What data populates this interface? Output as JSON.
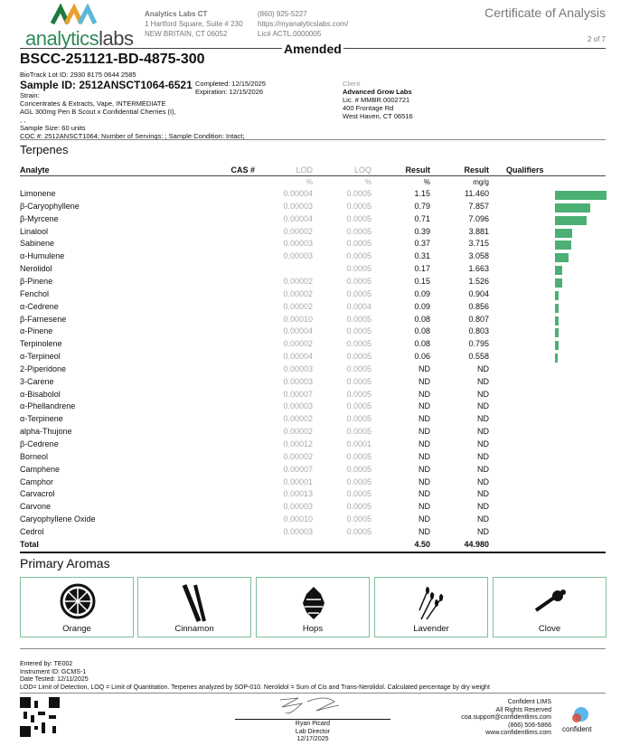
{
  "header": {
    "logo_text_1": "analytics",
    "logo_text_2": "labs",
    "lab_name": "Analytics Labs CT",
    "lab_address_1": "1 Hartford Square, Suite # 230",
    "lab_address_2": "NEW BRITAIN, CT 06052",
    "phone": "(860) 925-5227",
    "website": "https://myanalyticslabs.com/",
    "license": "Lic# ACTL.0000005",
    "doc_title": "Certificate of Analysis",
    "page": "2 of 7",
    "amended": "Amended"
  },
  "sample": {
    "batch": "BSCC-251121-BD-4875-300",
    "biotrack": "BioTrack Lot ID: 2930 8175 0644 2585",
    "sample_id": "Sample ID: 2512ANSCT1064-6521",
    "strain": "Strain:",
    "category": "Concentrates & Extracts, Vape, INTERMEDIATE",
    "product": "AGL 300mg Pen B Scout x Confidential Cherries (I),",
    "dots": ", ,",
    "size": "Sample Size: 60 units",
    "coc": "COC #: 2512ANSCT1064; Number of Servings: ; Sample Condition: Intact;",
    "completed": "Completed: 12/15/2025",
    "expiration": "Expiration: 12/15/2026"
  },
  "client": {
    "label": "Client",
    "name": "Advanced Grow Labs",
    "license": "Lic. # MMBR.0002721",
    "address_1": "400 Frontage Rd",
    "address_2": "West Haven, CT 06516"
  },
  "terpenes": {
    "title": "Terpenes",
    "headers": {
      "analyte": "Analyte",
      "cas": "CAS #",
      "lod": "LOD",
      "loq": "LOQ",
      "result_pct": "Result",
      "result_mg": "Result",
      "qualifiers": "Qualifiers"
    },
    "units": {
      "lod": "%",
      "loq": "%",
      "pct": "%",
      "mg": "mg/g"
    },
    "rows": [
      {
        "name": "Limonene",
        "lod": "0.00004",
        "loq": "0.0005",
        "pct": "1.15",
        "mg": "11.460",
        "bar": 11.46
      },
      {
        "name": "β-Caryophyllene",
        "lod": "0.00003",
        "loq": "0.0005",
        "pct": "0.79",
        "mg": "7.857",
        "bar": 7.857
      },
      {
        "name": "β-Myrcene",
        "lod": "0.00004",
        "loq": "0.0005",
        "pct": "0.71",
        "mg": "7.096",
        "bar": 7.096
      },
      {
        "name": "Linalool",
        "lod": "0.00002",
        "loq": "0.0005",
        "pct": "0.39",
        "mg": "3.881",
        "bar": 3.881
      },
      {
        "name": "Sabinene",
        "lod": "0.00003",
        "loq": "0.0005",
        "pct": "0.37",
        "mg": "3.715",
        "bar": 3.715
      },
      {
        "name": "α-Humulene",
        "lod": "0.00003",
        "loq": "0.0005",
        "pct": "0.31",
        "mg": "3.058",
        "bar": 3.058
      },
      {
        "name": "Nerolidol",
        "lod": "",
        "loq": "0.0005",
        "pct": "0.17",
        "mg": "1.663",
        "bar": 1.663
      },
      {
        "name": "β-Pinene",
        "lod": "0.00002",
        "loq": "0.0005",
        "pct": "0.15",
        "mg": "1.526",
        "bar": 1.526
      },
      {
        "name": "Fenchol",
        "lod": "0.00002",
        "loq": "0.0005",
        "pct": "0.09",
        "mg": "0.904",
        "bar": 0.904
      },
      {
        "name": "α-Cedrene",
        "lod": "0.00002",
        "loq": "0.0004",
        "pct": "0.09",
        "mg": "0.856",
        "bar": 0.856
      },
      {
        "name": "β-Farnesene",
        "lod": "0.00010",
        "loq": "0.0005",
        "pct": "0.08",
        "mg": "0.807",
        "bar": 0.807
      },
      {
        "name": "α-Pinene",
        "lod": "0.00004",
        "loq": "0.0005",
        "pct": "0.08",
        "mg": "0.803",
        "bar": 0.803
      },
      {
        "name": "Terpinolene",
        "lod": "0.00002",
        "loq": "0.0005",
        "pct": "0.08",
        "mg": "0.795",
        "bar": 0.795
      },
      {
        "name": "α-Terpineol",
        "lod": "0.00004",
        "loq": "0.0005",
        "pct": "0.06",
        "mg": "0.558",
        "bar": 0.558
      },
      {
        "name": "2-Piperidone",
        "lod": "0.00003",
        "loq": "0.0005",
        "pct": "ND",
        "mg": "ND"
      },
      {
        "name": "3-Carene",
        "lod": "0.00003",
        "loq": "0.0005",
        "pct": "ND",
        "mg": "ND"
      },
      {
        "name": "α-Bisabolol",
        "lod": "0.00007",
        "loq": "0.0005",
        "pct": "ND",
        "mg": "ND"
      },
      {
        "name": "α-Phellandrene",
        "lod": "0.00003",
        "loq": "0.0005",
        "pct": "ND",
        "mg": "ND"
      },
      {
        "name": "α-Terpinene",
        "lod": "0.00002",
        "loq": "0.0005",
        "pct": "ND",
        "mg": "ND"
      },
      {
        "name": "alpha-Thujone",
        "lod": "0.00002",
        "loq": "0.0005",
        "pct": "ND",
        "mg": "ND"
      },
      {
        "name": "β-Cedrene",
        "lod": "0.00012",
        "loq": "0.0001",
        "pct": "ND",
        "mg": "ND"
      },
      {
        "name": "Borneol",
        "lod": "0.00002",
        "loq": "0.0005",
        "pct": "ND",
        "mg": "ND"
      },
      {
        "name": "Camphene",
        "lod": "0.00007",
        "loq": "0.0005",
        "pct": "ND",
        "mg": "ND"
      },
      {
        "name": "Camphor",
        "lod": "0.00001",
        "loq": "0.0005",
        "pct": "ND",
        "mg": "ND"
      },
      {
        "name": "Carvacrol",
        "lod": "0.00013",
        "loq": "0.0005",
        "pct": "ND",
        "mg": "ND"
      },
      {
        "name": "Carvone",
        "lod": "0.00003",
        "loq": "0.0005",
        "pct": "ND",
        "mg": "ND"
      },
      {
        "name": "Caryophyllene Oxide",
        "lod": "0.00010",
        "loq": "0.0005",
        "pct": "ND",
        "mg": "ND"
      },
      {
        "name": "Cedrol",
        "lod": "0.00003",
        "loq": "0.0005",
        "pct": "ND",
        "mg": "ND"
      }
    ],
    "total": {
      "label": "Total",
      "pct": "4.50",
      "mg": "44.980"
    },
    "bar_color": "#4caf74"
  },
  "aromas": {
    "title": "Primary Aromas",
    "items": [
      {
        "label": "Orange",
        "icon": "orange-slice-icon"
      },
      {
        "label": "Cinnamon",
        "icon": "cinnamon-stick-icon"
      },
      {
        "label": "Hops",
        "icon": "hops-icon"
      },
      {
        "label": "Lavender",
        "icon": "lavender-icon"
      },
      {
        "label": "Clove",
        "icon": "clove-icon"
      }
    ]
  },
  "footer": {
    "entered_by": "Entered by: TE002",
    "instrument": "Instrument ID: GCMS-1",
    "date_tested": "Date Tested: 12/11/2025",
    "note": "LOD= Limit of Detection, LOQ = Limit of Quantitation. Terpenes analyzed by SOP-010. Nerolidol = Sum of Cis and Trans-Nerolidol. Calculated percentage by dry weight",
    "signer": "Ryan Picard",
    "signer_title": "Lab Director",
    "sign_date": "12/17/2025",
    "lims_1": "Confident LIMS",
    "lims_2": "All Rights Reserved",
    "lims_email": "coa.support@confidentlims.com",
    "lims_phone": "(866) 506-5866",
    "lims_web": "www.confidentlims.com",
    "lims_logo": "confident"
  }
}
